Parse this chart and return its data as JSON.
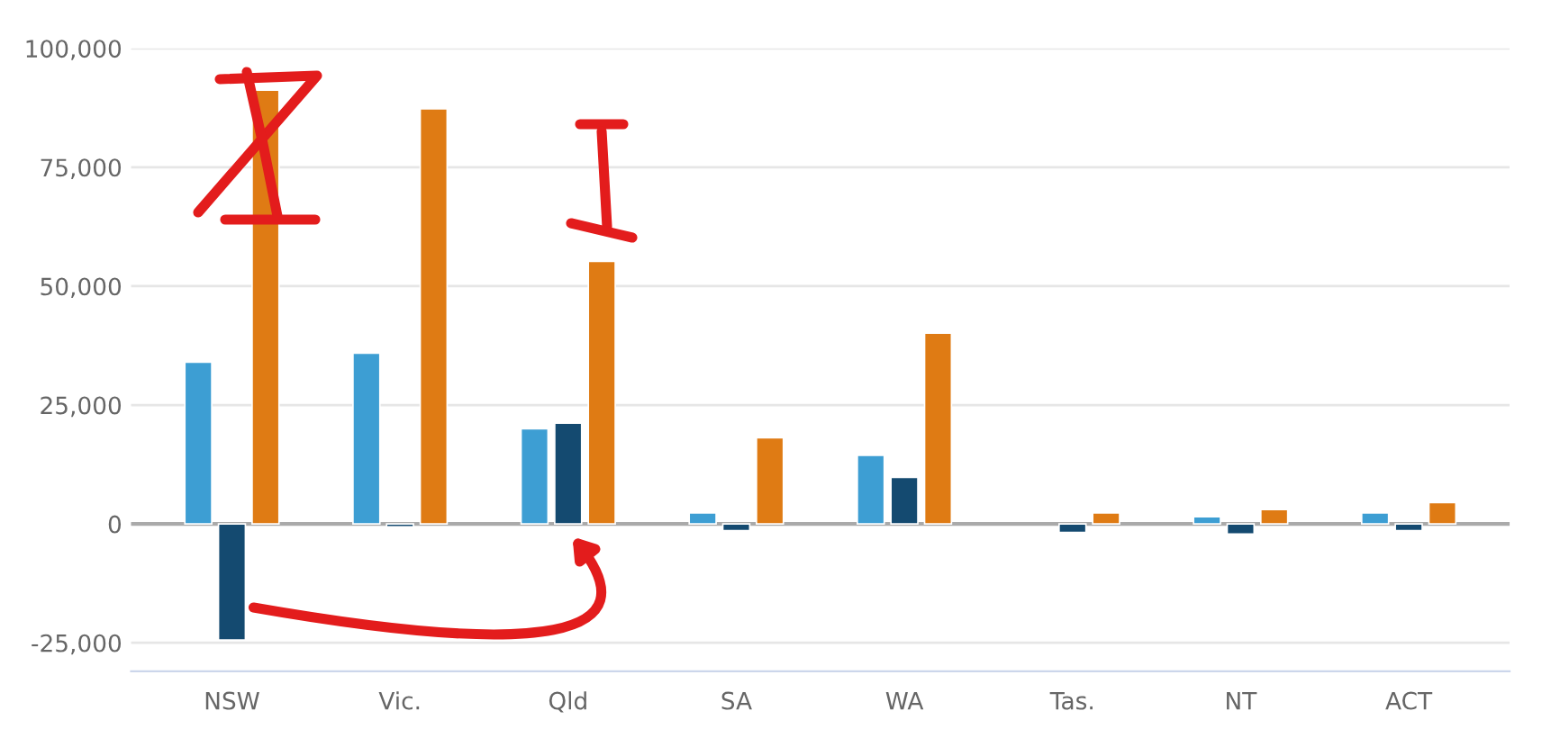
{
  "chart_data": {
    "type": "bar",
    "categories": [
      "NSW",
      "Vic.",
      "Qld",
      "SA",
      "WA",
      "Tas.",
      "NT",
      "ACT"
    ],
    "series": [
      {
        "color": "#3d9ed3",
        "values": [
          34000,
          35900,
          20000,
          2300,
          14400,
          null,
          1500,
          2300
        ]
      },
      {
        "color": "#144a70",
        "values": [
          -24400,
          -600,
          21200,
          -1400,
          9800,
          -1800,
          -2100,
          -1400
        ]
      },
      {
        "color": "#df7b14",
        "values": [
          91200,
          87300,
          55200,
          18100,
          40100,
          2300,
          3000,
          4500
        ]
      }
    ],
    "ylim": [
      -31000,
      100000
    ],
    "yticks": [
      {
        "value": -25000,
        "label": "-25,000"
      },
      {
        "value": 0,
        "label": "0"
      },
      {
        "value": 25000,
        "label": "25,000"
      },
      {
        "value": 50000,
        "label": "50,000"
      },
      {
        "value": 75000,
        "label": "75,000"
      },
      {
        "value": 100000,
        "label": "100,000"
      }
    ],
    "ref_lines": [
      {
        "axis": "y",
        "value": 0,
        "color": "#aaaaaa"
      }
    ],
    "grid": "y",
    "legend": false
  }
}
